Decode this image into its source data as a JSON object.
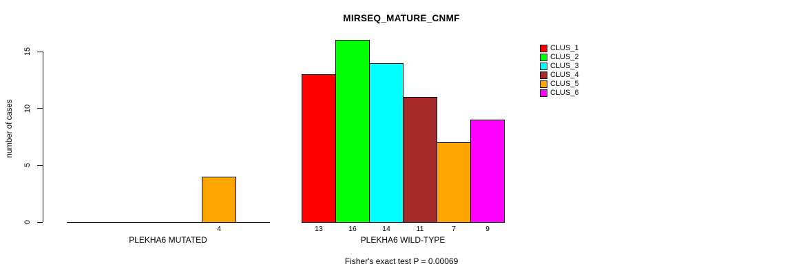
{
  "chart_data": {
    "type": "bar",
    "title": "MIRSEQ_MATURE_CNMF",
    "ylabel": "number of cases",
    "ylim": [
      0,
      15
    ],
    "yticks": [
      0,
      5,
      10,
      15
    ],
    "grid": false,
    "legend_position": "right",
    "note": "Fisher's exact test P = 0.00069",
    "clusters": [
      "CLUS_1",
      "CLUS_2",
      "CLUS_3",
      "CLUS_4",
      "CLUS_5",
      "CLUS_6"
    ],
    "colors": [
      "#FF0000",
      "#00FF00",
      "#00FFFF",
      "#A52A2A",
      "#FFA500",
      "#FF00FF"
    ],
    "groups": [
      {
        "label": "PLEKHA6 MUTATED",
        "values": [
          0,
          0,
          0,
          0,
          4,
          0
        ]
      },
      {
        "label": "PLEKHA6 WILD-TYPE",
        "values": [
          13,
          16,
          14,
          11,
          7,
          9
        ]
      }
    ]
  }
}
